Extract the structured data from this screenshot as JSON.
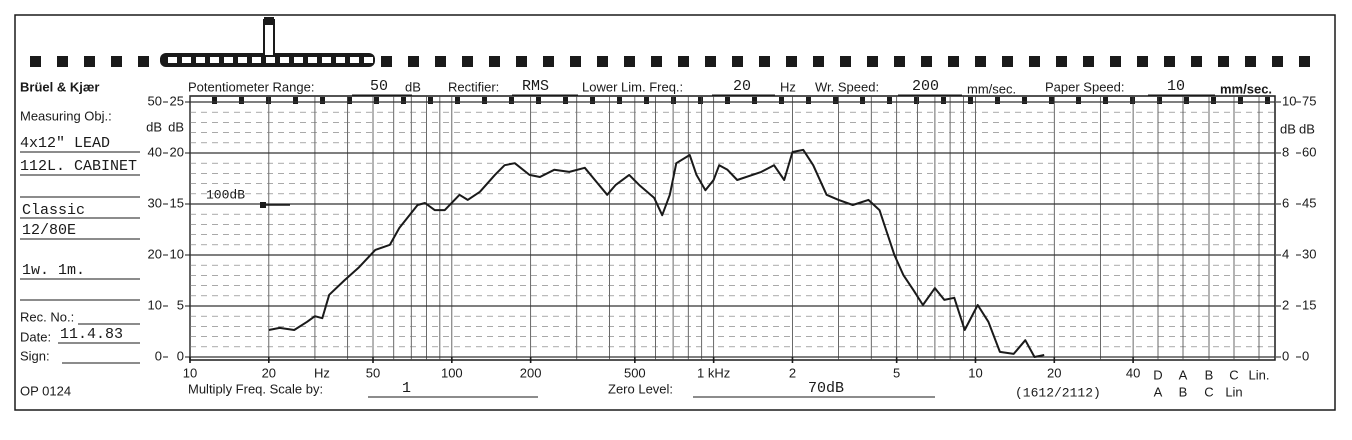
{
  "header": {
    "brand": "Brüel & Kjær",
    "pot_label": "Potentiometer Range:",
    "pot_value": "50",
    "pot_unit": "dB",
    "rect_label": "Rectifier:",
    "rect_value": "RMS",
    "llf_label": "Lower Lim. Freq.:",
    "llf_value": "20",
    "llf_unit": "Hz",
    "wr_label": "Wr. Speed:",
    "wr_value": "200",
    "wr_unit": "mm/sec.",
    "ps_label": "Paper Speed:",
    "ps_value": "10",
    "ps_unit": "mm/sec."
  },
  "left_panel": {
    "obj_label": "Measuring Obj.:",
    "obj_lines": [
      "4x12\" LEAD",
      "112L. CABINET",
      "Classic",
      "12/80E",
      "1w. 1m."
    ],
    "rec_label": "Rec. No.:",
    "date_label": "Date:",
    "date_value": "11.4.83",
    "sign_label": "Sign:",
    "form": "OP 0124"
  },
  "footer": {
    "mult_label": "Multiply Freq. Scale by:",
    "mult_value": "1",
    "zero_label": "Zero Level:",
    "zero_value": "70dB",
    "code": "(1612/2112)"
  },
  "chart_data": {
    "type": "line",
    "color": "#1a1a1a",
    "xlog": true,
    "grid": true,
    "x": [
      20,
      22,
      25,
      28,
      30,
      32,
      34,
      39,
      44,
      51,
      58,
      63,
      74,
      79,
      86,
      94,
      107,
      115,
      128,
      146,
      159,
      174,
      198,
      217,
      246,
      281,
      322,
      352,
      392,
      422,
      476,
      520,
      593,
      636,
      680,
      720,
      810,
      860,
      930,
      1000,
      1050,
      1130,
      1230,
      1520,
      1700,
      1860,
      2000,
      2200,
      2400,
      2700,
      3000,
      3400,
      3900,
      4300,
      4900,
      5300,
      5800,
      6300,
      7000,
      7600,
      8300,
      9100,
      10200,
      11200,
      12400,
      14000,
      15500,
      16800,
      18300
    ],
    "values": [
      5.3,
      5.7,
      5.3,
      6.9,
      8.0,
      7.6,
      12.2,
      15.1,
      17.5,
      21.0,
      22.0,
      25.3,
      29.8,
      30.2,
      28.8,
      28.8,
      31.8,
      30.8,
      32.4,
      35.7,
      37.6,
      38.0,
      35.7,
      35.3,
      36.7,
      36.3,
      37.1,
      34.7,
      31.8,
      33.7,
      35.7,
      33.7,
      31.2,
      27.8,
      31.8,
      38.0,
      39.6,
      35.7,
      32.7,
      34.7,
      37.6,
      36.7,
      34.7,
      36.3,
      37.6,
      34.7,
      40.2,
      40.6,
      37.6,
      31.8,
      30.8,
      29.8,
      30.8,
      28.8,
      20.0,
      16.1,
      13.1,
      10.2,
      13.5,
      11.2,
      11.6,
      5.3,
      10.2,
      6.9,
      1.0,
      0.6,
      3.3,
      0,
      0.4
    ],
    "xlim": [
      10,
      46000
    ],
    "xticks": [
      10,
      20,
      50,
      100,
      200,
      500,
      {
        "value": 1000,
        "label": "1 kHz"
      },
      {
        "value": 2000,
        "label": "2"
      },
      {
        "value": 5000,
        "label": "5"
      },
      {
        "value": 10000,
        "label": "10"
      },
      {
        "value": 20000,
        "label": "20"
      },
      {
        "value": 40000,
        "label": "40"
      }
    ],
    "x_unit": "Hz",
    "xgrid": [
      10,
      20,
      30,
      40,
      50,
      60,
      70,
      80,
      90,
      100,
      200,
      300,
      400,
      500,
      600,
      700,
      800,
      900,
      1000,
      2000,
      3000,
      4000,
      5000,
      6000,
      7000,
      8000,
      9000,
      10000,
      20000,
      30000,
      40000
    ],
    "ylim": [
      0,
      50
    ],
    "yticks": [
      0,
      10,
      20,
      30,
      40,
      50
    ],
    "y_unit": "dB",
    "ylim_inner": [
      0,
      25
    ],
    "yticks_inner": [
      0,
      5,
      10,
      15,
      20,
      25
    ],
    "y_unit_inner": "dB",
    "ygrid": [
      2,
      4,
      6,
      8,
      12,
      14,
      16,
      18,
      22,
      24,
      26,
      28,
      32,
      34,
      36,
      38,
      42,
      44,
      46,
      48
    ],
    "y2lim": [
      0,
      10
    ],
    "y2ticks": [
      0,
      2,
      4,
      6,
      8,
      10
    ],
    "y2_unit": "dB",
    "y2lim_outer": [
      0,
      75
    ],
    "y2ticks_outer": [
      0,
      15,
      30,
      45,
      60,
      75
    ],
    "y2_unit_outer": "dB",
    "annotation": "100dB",
    "weightings_top": [
      "D",
      "A",
      "B",
      "C",
      "Lin."
    ],
    "weightings_bottom": [
      "A",
      "B",
      "C",
      "Lin"
    ]
  }
}
